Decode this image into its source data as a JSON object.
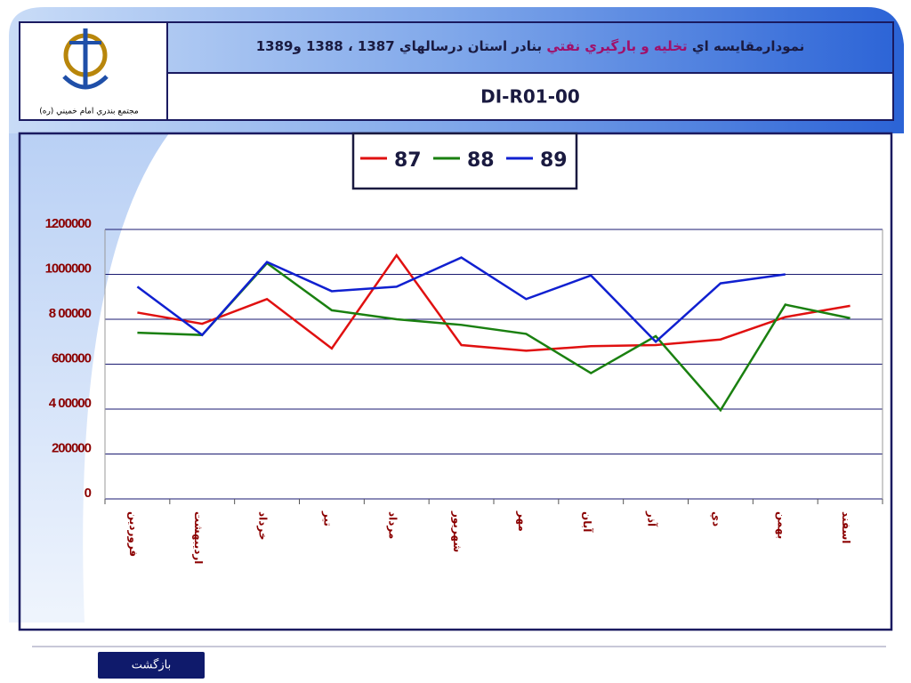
{
  "header": {
    "title_parts": [
      "نمودارمقايسه اي ",
      "تخليه و بارگيري نفتي",
      " بنادر استان درسالهاي 1387 ، 1388 و1389"
    ],
    "code": "DI-R01-00",
    "logo_caption": "مجتمع بندري امام خميني (ره)"
  },
  "footer": {
    "button": "بازگشت"
  },
  "chart_data": {
    "type": "line",
    "categories": [
      "فروردين",
      "ارديبهشت",
      "خرداد",
      "تير",
      "مرداد",
      "شهريور",
      "مهر",
      "آبان",
      "آذر",
      "دي",
      "بهمن",
      "اسفند"
    ],
    "series": [
      {
        "name": "87",
        "color": "#e01010",
        "values": [
          830000,
          780000,
          890000,
          670000,
          1085000,
          685000,
          660000,
          680000,
          685000,
          710000,
          810000,
          860000
        ]
      },
      {
        "name": "88",
        "color": "#1a8010",
        "values": [
          740000,
          730000,
          1050000,
          840000,
          800000,
          775000,
          735000,
          560000,
          725000,
          395000,
          865000,
          805000
        ]
      },
      {
        "name": "89",
        "color": "#1020d0",
        "values": [
          945000,
          730000,
          1055000,
          925000,
          945000,
          1075000,
          890000,
          995000,
          700000,
          960000,
          1000000,
          null
        ]
      }
    ],
    "ylim": [
      0,
      1200000
    ],
    "yticks": [
      0,
      200000,
      {
        "value": 400000,
        "label": "4 00000"
      },
      600000,
      {
        "value": 800000,
        "label": "8 00000"
      },
      1000000,
      1200000
    ],
    "grid": true
  }
}
